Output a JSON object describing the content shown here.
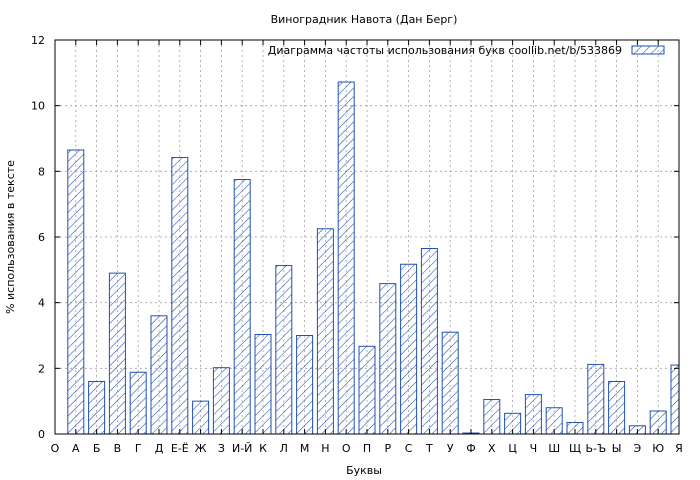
{
  "chart_data": {
    "type": "bar",
    "title": "Виноградник Навота (Дан Берг)",
    "xlabel": "Буквы",
    "ylabel": "% использования в тексте",
    "ylim": [
      0,
      12
    ],
    "yticks": [
      "0",
      "2",
      "4",
      "6",
      "8",
      "10",
      "12"
    ],
    "grid": true,
    "legend_position": "top-right",
    "categories": [
      "О",
      "А",
      "Б",
      "В",
      "Г",
      "Д",
      "Е-Ё",
      "Ж",
      "З",
      "И-Й",
      "К",
      "Л",
      "М",
      "Н",
      "О",
      "П",
      "Р",
      "С",
      "Т",
      "У",
      "Ф",
      "Х",
      "Ц",
      "Ч",
      "Ш",
      "Щ",
      "Ь-Ъ",
      "Ы",
      "Э",
      "Ю",
      "Я"
    ],
    "series": [
      {
        "name": "Диаграмма частоты использования букв  coollib.net/b/533869",
        "color": "#2050b0",
        "values": [
          null,
          8.65,
          1.6,
          4.9,
          1.88,
          3.6,
          8.42,
          1.0,
          2.02,
          7.75,
          3.03,
          5.13,
          3.0,
          6.25,
          10.72,
          2.67,
          4.58,
          5.17,
          5.65,
          3.1,
          0.03,
          1.05,
          0.63,
          1.2,
          0.8,
          0.35,
          2.12,
          1.6,
          0.25,
          0.7,
          2.1
        ]
      }
    ]
  }
}
